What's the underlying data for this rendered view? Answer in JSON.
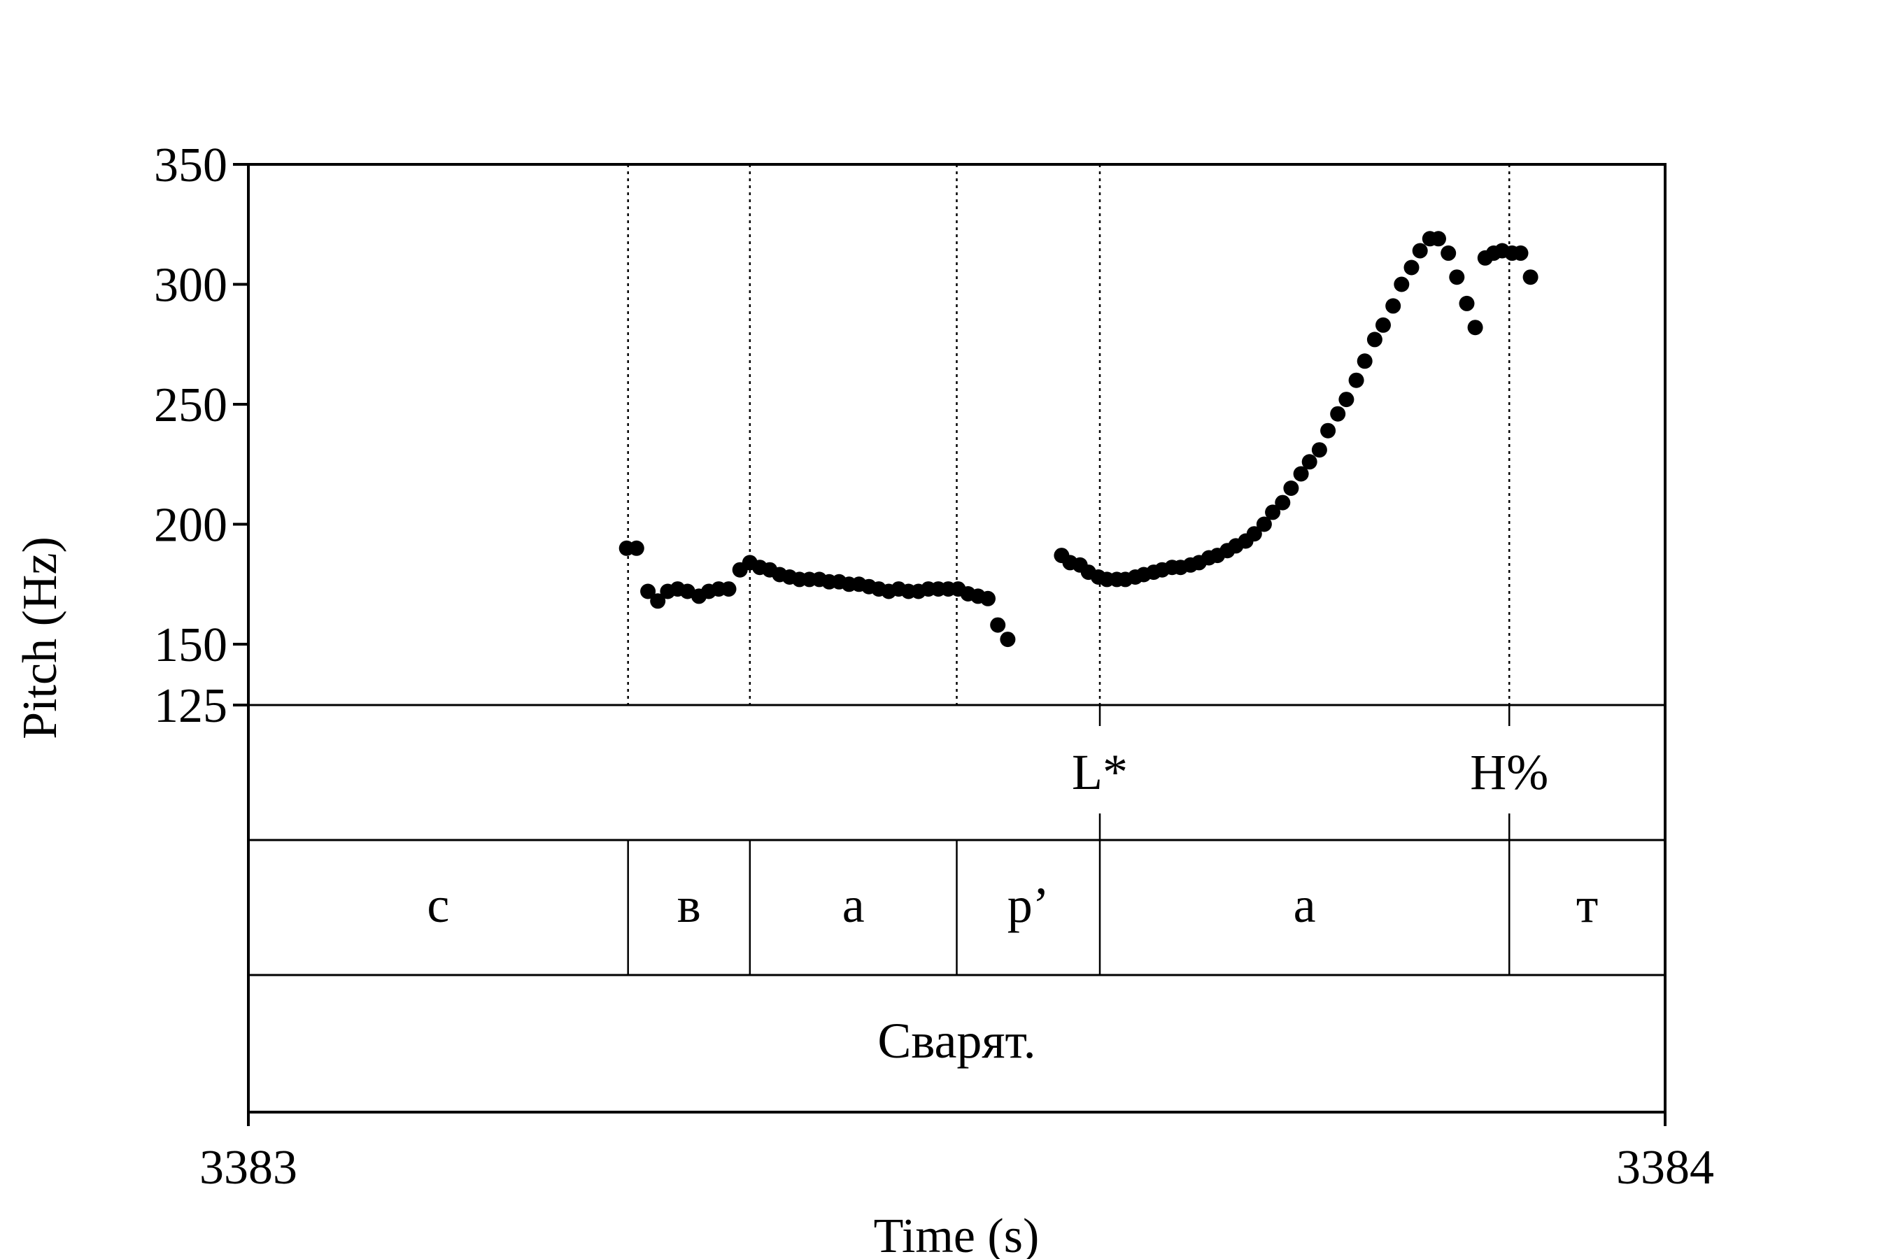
{
  "chart_data": {
    "type": "scatter",
    "xlabel": "Time (s)",
    "ylabel": "Pitch (Hz)",
    "xlim": [
      3383,
      3384
    ],
    "ylim": [
      125,
      350
    ],
    "x_ticks": [
      "3383",
      "3384"
    ],
    "y_ticks": [
      125,
      150,
      200,
      250,
      300,
      350
    ],
    "grid": false,
    "legend": null,
    "boundaries": [
      3383.268,
      3383.354,
      3383.5,
      3383.601,
      3383.89
    ],
    "tiers": [
      {
        "name": "tones",
        "points": [
          {
            "x": 3383.601,
            "label": "L*"
          },
          {
            "x": 3383.89,
            "label": "H%"
          }
        ]
      },
      {
        "name": "segments",
        "intervals": [
          {
            "start": 3383.0,
            "end": 3383.268,
            "label": "с"
          },
          {
            "start": 3383.268,
            "end": 3383.354,
            "label": "в"
          },
          {
            "start": 3383.354,
            "end": 3383.5,
            "label": "а"
          },
          {
            "start": 3383.5,
            "end": 3383.601,
            "label": "р’"
          },
          {
            "start": 3383.601,
            "end": 3383.89,
            "label": "а"
          },
          {
            "start": 3383.89,
            "end": 3384.0,
            "label": "т"
          }
        ]
      },
      {
        "name": "word",
        "intervals": [
          {
            "start": 3383.0,
            "end": 3384.0,
            "label": "Сварят."
          }
        ]
      }
    ],
    "series": [
      {
        "points": [
          [
            3383.267,
            190
          ],
          [
            3383.274,
            190
          ],
          [
            3383.282,
            172
          ],
          [
            3383.289,
            168
          ],
          [
            3383.296,
            172
          ],
          [
            3383.303,
            173
          ],
          [
            3383.31,
            172
          ],
          [
            3383.318,
            170
          ],
          [
            3383.325,
            172
          ],
          [
            3383.332,
            173
          ],
          [
            3383.339,
            173
          ],
          [
            3383.347,
            181
          ],
          [
            3383.354,
            184
          ],
          [
            3383.361,
            182
          ],
          [
            3383.368,
            181
          ],
          [
            3383.375,
            179
          ],
          [
            3383.382,
            178
          ],
          [
            3383.389,
            177
          ],
          [
            3383.396,
            177
          ],
          [
            3383.403,
            177
          ],
          [
            3383.41,
            176
          ],
          [
            3383.417,
            176
          ],
          [
            3383.424,
            175
          ],
          [
            3383.431,
            175
          ],
          [
            3383.438,
            174
          ],
          [
            3383.445,
            173
          ],
          [
            3383.452,
            172
          ],
          [
            3383.459,
            173
          ],
          [
            3383.466,
            172
          ],
          [
            3383.473,
            172
          ],
          [
            3383.48,
            173
          ],
          [
            3383.487,
            173
          ],
          [
            3383.494,
            173
          ],
          [
            3383.501,
            173
          ],
          [
            3383.508,
            171
          ],
          [
            3383.515,
            170
          ],
          [
            3383.522,
            169
          ],
          [
            3383.529,
            158
          ],
          [
            3383.536,
            152
          ],
          [
            3383.574,
            187
          ],
          [
            3383.58,
            184
          ],
          [
            3383.587,
            183
          ],
          [
            3383.593,
            180
          ],
          [
            3383.6,
            178
          ],
          [
            3383.606,
            177
          ],
          [
            3383.613,
            177
          ],
          [
            3383.619,
            177
          ],
          [
            3383.626,
            178
          ],
          [
            3383.632,
            179
          ],
          [
            3383.639,
            180
          ],
          [
            3383.645,
            181
          ],
          [
            3383.652,
            182
          ],
          [
            3383.658,
            182
          ],
          [
            3383.665,
            183
          ],
          [
            3383.671,
            184
          ],
          [
            3383.678,
            186
          ],
          [
            3383.684,
            187
          ],
          [
            3383.691,
            189
          ],
          [
            3383.697,
            191
          ],
          [
            3383.704,
            193
          ],
          [
            3383.71,
            196
          ],
          [
            3383.717,
            200
          ],
          [
            3383.723,
            205
          ],
          [
            3383.73,
            209
          ],
          [
            3383.736,
            215
          ],
          [
            3383.743,
            221
          ],
          [
            3383.749,
            226
          ],
          [
            3383.756,
            231
          ],
          [
            3383.762,
            239
          ],
          [
            3383.769,
            246
          ],
          [
            3383.775,
            252
          ],
          [
            3383.782,
            260
          ],
          [
            3383.788,
            268
          ],
          [
            3383.795,
            277
          ],
          [
            3383.801,
            283
          ],
          [
            3383.808,
            291
          ],
          [
            3383.814,
            300
          ],
          [
            3383.821,
            307
          ],
          [
            3383.827,
            314
          ],
          [
            3383.834,
            319
          ],
          [
            3383.84,
            319
          ],
          [
            3383.847,
            313
          ],
          [
            3383.853,
            303
          ],
          [
            3383.86,
            292
          ],
          [
            3383.866,
            282
          ],
          [
            3383.873,
            311
          ],
          [
            3383.879,
            313
          ],
          [
            3383.885,
            314
          ],
          [
            3383.892,
            313
          ],
          [
            3383.898,
            313
          ],
          [
            3383.905,
            303
          ]
        ]
      }
    ]
  }
}
